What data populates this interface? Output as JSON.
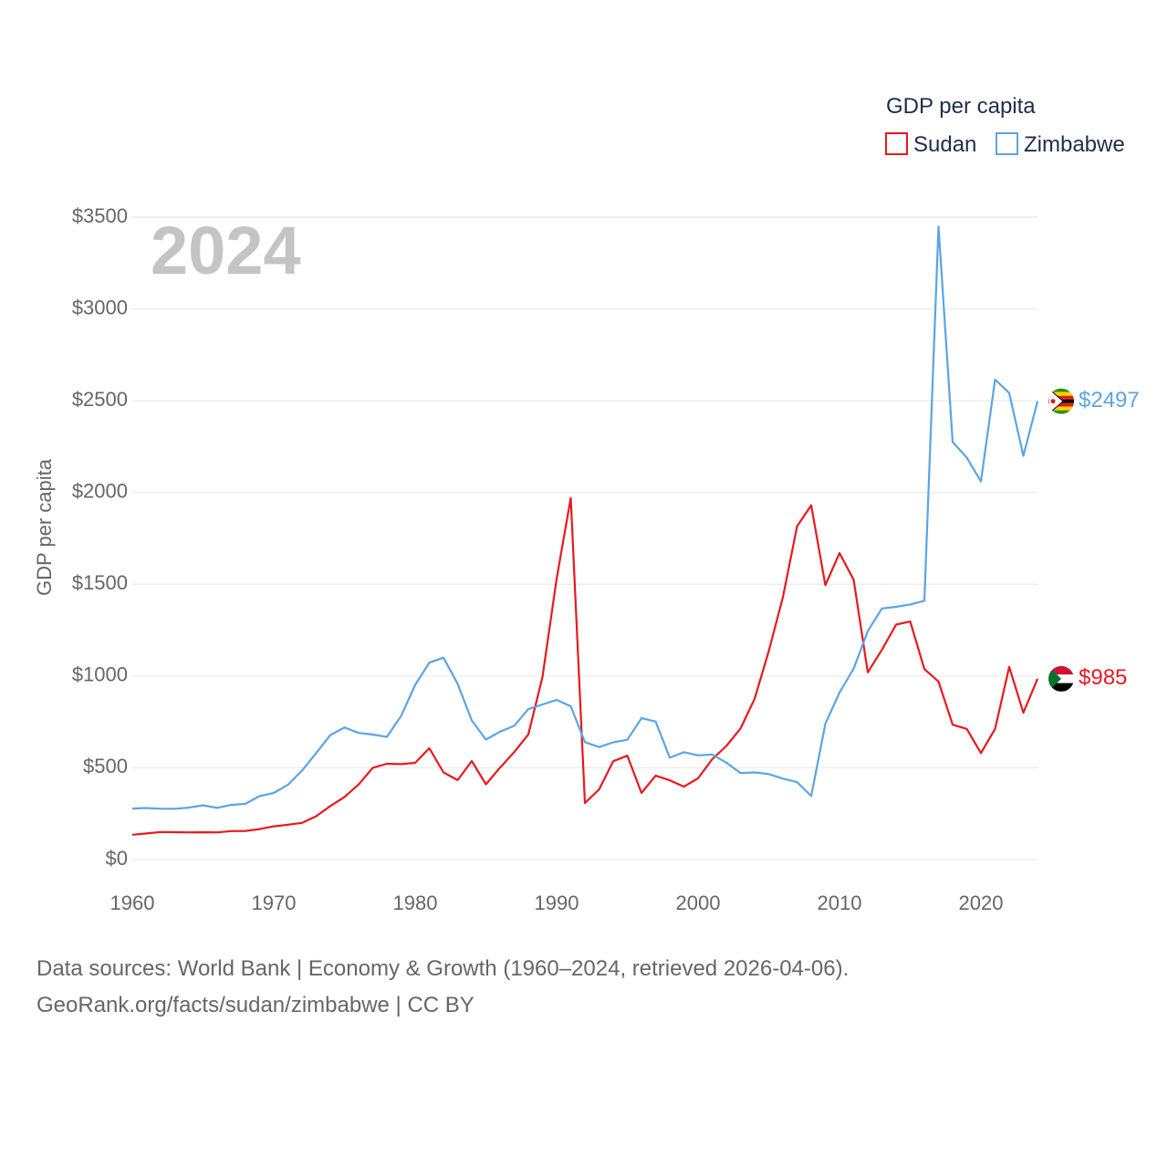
{
  "chart_data": {
    "type": "line",
    "year_display": "2024",
    "ylabel": "GDP per capita",
    "xlabel": "",
    "xlim": [
      1960,
      2024
    ],
    "ylim": [
      0,
      3500
    ],
    "x_ticks": [
      1960,
      1970,
      1980,
      1990,
      2000,
      2010,
      2020
    ],
    "x_tick_labels": [
      "1960",
      "1970",
      "1980",
      "1990",
      "2000",
      "2010",
      "2020"
    ],
    "y_ticks": [
      0,
      500,
      1000,
      1500,
      2000,
      2500,
      3000,
      3500
    ],
    "y_tick_labels": [
      "$0",
      "$500",
      "$1000",
      "$1500",
      "$2000",
      "$2500",
      "$3000",
      "$3500"
    ],
    "grid": true,
    "legend": {
      "title": "GDP per capita",
      "position": "top-right",
      "entries": [
        "Sudan",
        "Zimbabwe"
      ]
    },
    "x": [
      1960,
      1961,
      1962,
      1963,
      1964,
      1965,
      1966,
      1967,
      1968,
      1969,
      1970,
      1971,
      1972,
      1973,
      1974,
      1975,
      1976,
      1977,
      1978,
      1979,
      1980,
      1981,
      1982,
      1983,
      1984,
      1985,
      1986,
      1987,
      1988,
      1989,
      1990,
      1991,
      1992,
      1993,
      1994,
      1995,
      1996,
      1997,
      1998,
      1999,
      2000,
      2001,
      2002,
      2003,
      2004,
      2005,
      2006,
      2007,
      2008,
      2009,
      2010,
      2011,
      2012,
      2013,
      2014,
      2015,
      2016,
      2017,
      2018,
      2019,
      2020,
      2021,
      2022,
      2023,
      2024
    ],
    "series": [
      {
        "name": "Sudan",
        "color": "#e8191e",
        "end_label": "$985",
        "flag_icon": "sudan-flag-icon",
        "values": [
          135,
          142,
          150,
          149,
          148,
          149,
          148,
          155,
          156,
          166,
          181,
          190,
          200,
          236,
          292,
          341,
          409,
          500,
          522,
          520,
          527,
          607,
          475,
          433,
          537,
          410,
          501,
          585,
          682,
          995,
          1530,
          1970,
          308,
          382,
          536,
          566,
          363,
          457,
          432,
          397,
          443,
          547,
          619,
          714,
          876,
          1136,
          1430,
          1816,
          1930,
          1495,
          1670,
          1525,
          1020,
          1143,
          1280,
          1297,
          1038,
          970,
          735,
          712,
          580,
          712,
          1050,
          800,
          985
        ]
      },
      {
        "name": "Zimbabwe",
        "color": "#5ba4e5",
        "end_label": "$2497",
        "flag_icon": "zimbabwe-flag-icon",
        "values": [
          278,
          281,
          277,
          277,
          283,
          296,
          282,
          298,
          304,
          346,
          363,
          407,
          485,
          580,
          678,
          720,
          690,
          681,
          668,
          782,
          952,
          1073,
          1100,
          958,
          758,
          654,
          697,
          729,
          820,
          845,
          870,
          835,
          640,
          613,
          639,
          653,
          770,
          752,
          555,
          585,
          568,
          572,
          528,
          472,
          475,
          466,
          441,
          422,
          346,
          740,
          910,
          1040,
          1245,
          1368,
          1377,
          1390,
          1410,
          3449,
          2275,
          2190,
          2060,
          2615,
          2542,
          2200,
          2497
        ]
      }
    ]
  },
  "footer": {
    "line1": "Data sources: World Bank | Economy & Growth (1960–2024, retrieved 2026-04-06).",
    "line2": "GeoRank.org/facts/sudan/zimbabwe | CC BY"
  }
}
